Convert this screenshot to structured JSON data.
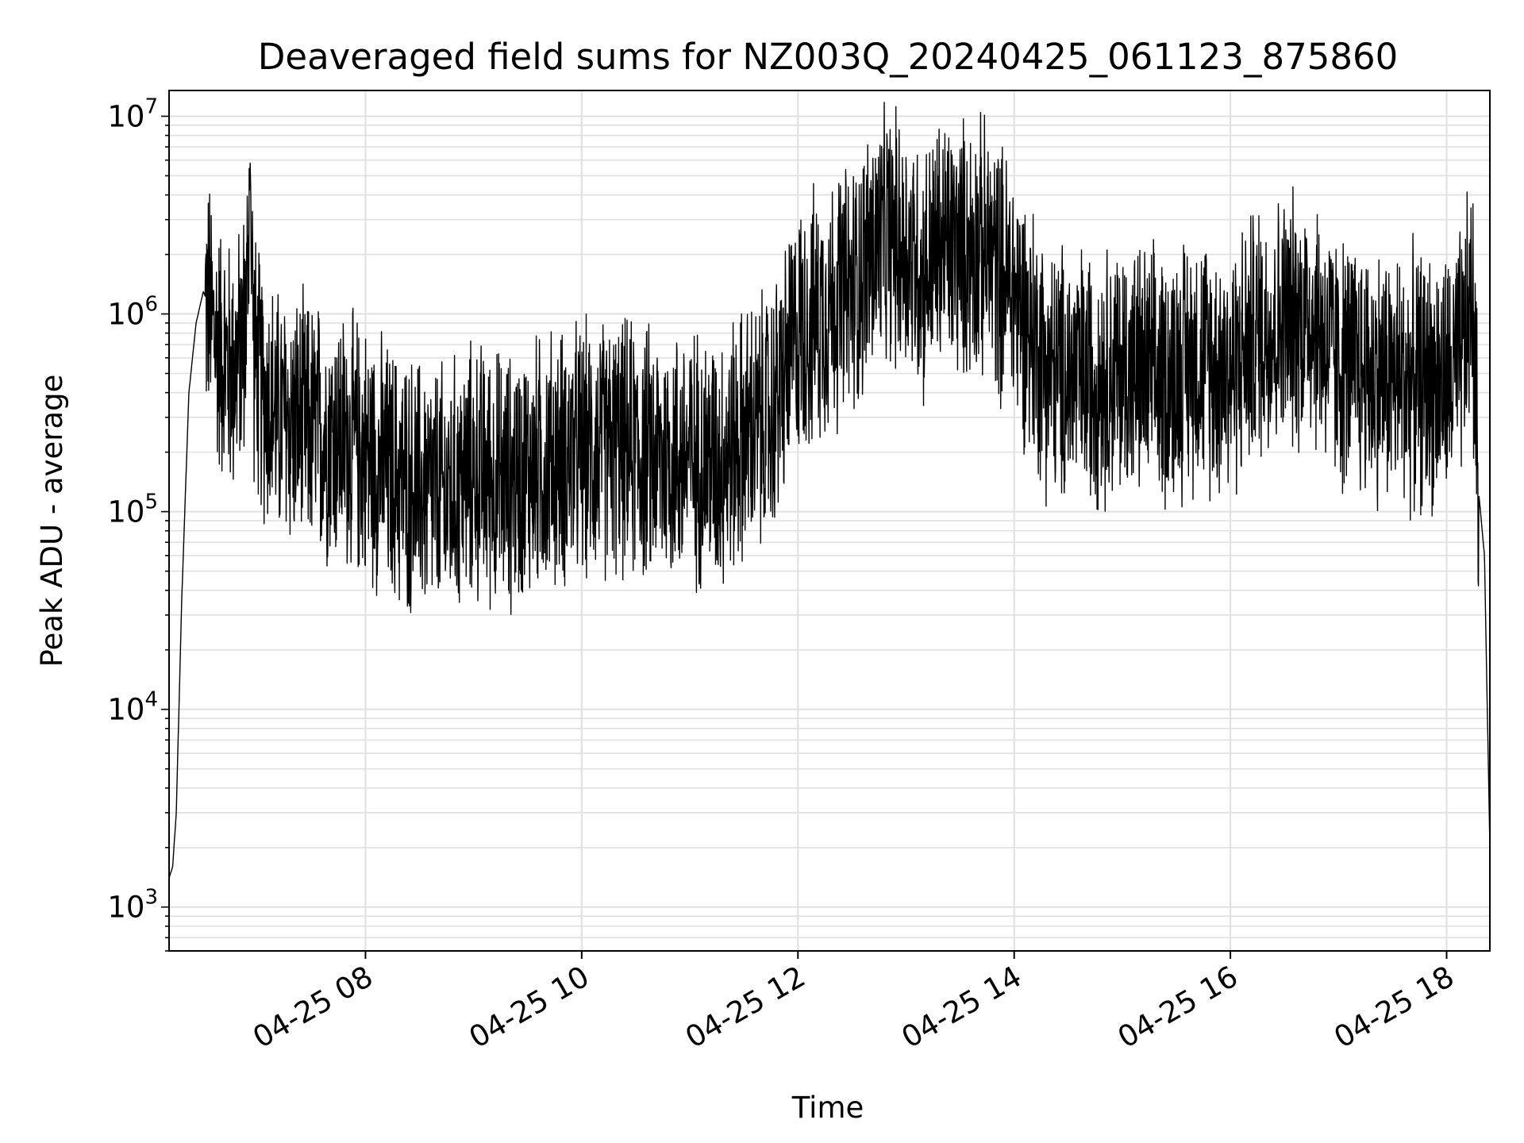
{
  "chart_data": {
    "type": "line",
    "title": "Deaveraged field sums for NZ003Q_20240425_061123_875860",
    "xlabel": "Time",
    "ylabel": "Peak ADU - average",
    "yscale": "log",
    "ylim": [
      600,
      13500000
    ],
    "xlim": [
      "04-25 06:11",
      "04-25 18:24"
    ],
    "grid": true,
    "line_color": "#000000",
    "grid_color": "#e0e0e0",
    "xticks": [
      {
        "value": "04-25 08:00",
        "label": "04-25 08"
      },
      {
        "value": "04-25 10:00",
        "label": "04-25 10"
      },
      {
        "value": "04-25 12:00",
        "label": "04-25 12"
      },
      {
        "value": "04-25 14:00",
        "label": "04-25 14"
      },
      {
        "value": "04-25 16:00",
        "label": "04-25 16"
      },
      {
        "value": "04-25 18:00",
        "label": "04-25 18"
      }
    ],
    "yticks": [
      {
        "value": 1000,
        "base": "10",
        "exp": "3"
      },
      {
        "value": 10000,
        "base": "10",
        "exp": "4"
      },
      {
        "value": 100000,
        "base": "10",
        "exp": "5"
      },
      {
        "value": 1000000,
        "base": "10",
        "exp": "6"
      },
      {
        "value": 10000000,
        "base": "10",
        "exp": "7"
      }
    ],
    "series": [
      {
        "x": [
          "04-25 06:11",
          "04-25 06:13",
          "04-25 06:15",
          "04-25 06:18",
          "04-25 06:22",
          "04-25 06:26",
          "04-25 06:30",
          "04-25 06:33",
          "04-25 06:36",
          "04-25 06:40",
          "04-25 06:45",
          "04-25 06:50",
          "04-25 06:54",
          "04-25 06:56",
          "04-25 06:58",
          "04-25 07:00",
          "04-25 07:02",
          "04-25 07:06",
          "04-25 07:12",
          "04-25 07:20",
          "04-25 07:30",
          "04-25 07:45",
          "04-25 08:00",
          "04-25 08:15",
          "04-25 08:30",
          "04-25 08:45",
          "04-25 09:00",
          "04-25 09:20",
          "04-25 09:40",
          "04-25 10:00",
          "04-25 10:20",
          "04-25 10:40",
          "04-25 11:00",
          "04-25 11:15",
          "04-25 11:30",
          "04-25 11:45",
          "04-25 12:00",
          "04-25 12:10",
          "04-25 12:20",
          "04-25 12:30",
          "04-25 12:40",
          "04-25 12:50",
          "04-25 13:00",
          "04-25 13:10",
          "04-25 13:20",
          "04-25 13:30",
          "04-25 13:40",
          "04-25 13:50",
          "04-25 14:00",
          "04-25 14:10",
          "04-25 14:20",
          "04-25 14:40",
          "04-25 15:00",
          "04-25 15:20",
          "04-25 15:40",
          "04-25 16:00",
          "04-25 16:15",
          "04-25 16:30",
          "04-25 16:45",
          "04-25 17:00",
          "04-25 17:15",
          "04-25 17:30",
          "04-25 17:45",
          "04-25 18:00",
          "04-25 18:05",
          "04-25 18:10",
          "04-25 18:14",
          "04-25 18:18",
          "04-25 18:21",
          "04-25 18:24"
        ],
        "values": [
          1400,
          1600,
          3000,
          35000,
          400000,
          900000,
          1300000,
          1100000,
          800000,
          650000,
          520000,
          600000,
          1000000,
          5800000,
          700000,
          500000,
          420000,
          360000,
          300000,
          280000,
          260000,
          240000,
          200000,
          150000,
          130000,
          120000,
          160000,
          140000,
          180000,
          200000,
          210000,
          190000,
          190000,
          180000,
          240000,
          300000,
          800000,
          950000,
          1200000,
          1300000,
          2000000,
          2500000,
          2200000,
          1600000,
          2300000,
          2100000,
          2200000,
          1800000,
          1300000,
          800000,
          500000,
          480000,
          520000,
          460000,
          600000,
          520000,
          800000,
          900000,
          1000000,
          560000,
          520000,
          470000,
          460000,
          450000,
          500000,
          700000,
          1300000,
          120000,
          60000,
          2000
        ]
      }
    ]
  }
}
